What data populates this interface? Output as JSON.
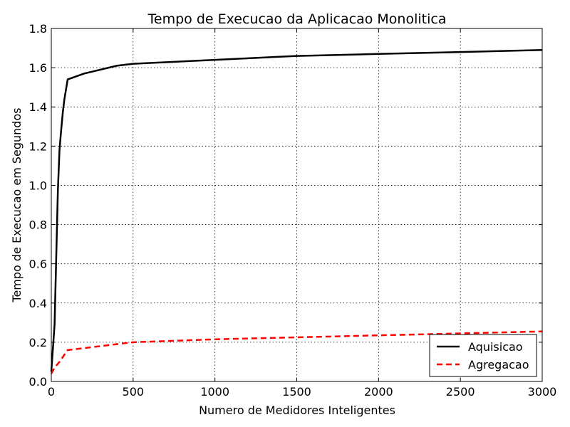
{
  "chart_data": {
    "type": "line",
    "title": "Tempo de Execucao da Aplicacao Monolitica",
    "xlabel": "Numero de Medidores Inteligentes",
    "ylabel": "Tempo de Execucao em Segundos",
    "xlim": [
      0,
      3000
    ],
    "ylim": [
      0.0,
      1.8
    ],
    "x_ticks": [
      "0",
      "500",
      "1000",
      "1500",
      "2000",
      "2500",
      "3000"
    ],
    "y_ticks": [
      "0.0",
      "0.2",
      "0.4",
      "0.6",
      "0.8",
      "1.0",
      "1.2",
      "1.4",
      "1.6",
      "1.8"
    ],
    "grid": true,
    "legend_position": "lower-right",
    "series": [
      {
        "name": "Aquisicao",
        "color": "#000000",
        "style": "solid",
        "points": [
          [
            0,
            0.05
          ],
          [
            20,
            0.29
          ],
          [
            40,
            0.97
          ],
          [
            50,
            1.18
          ],
          [
            60,
            1.28
          ],
          [
            70,
            1.37
          ],
          [
            80,
            1.44
          ],
          [
            100,
            1.54
          ],
          [
            200,
            1.57
          ],
          [
            400,
            1.61
          ],
          [
            500,
            1.62
          ],
          [
            1000,
            1.64
          ],
          [
            1500,
            1.66
          ],
          [
            2000,
            1.67
          ],
          [
            2500,
            1.68
          ],
          [
            3000,
            1.69
          ]
        ]
      },
      {
        "name": "Agregacao",
        "color": "#ff0000",
        "style": "dashed",
        "points": [
          [
            0,
            0.04
          ],
          [
            20,
            0.07
          ],
          [
            50,
            0.1
          ],
          [
            100,
            0.16
          ],
          [
            200,
            0.17
          ],
          [
            400,
            0.19
          ],
          [
            500,
            0.2
          ],
          [
            1000,
            0.215
          ],
          [
            1500,
            0.225
          ],
          [
            2000,
            0.235
          ],
          [
            2500,
            0.245
          ],
          [
            3000,
            0.255
          ]
        ]
      }
    ]
  }
}
